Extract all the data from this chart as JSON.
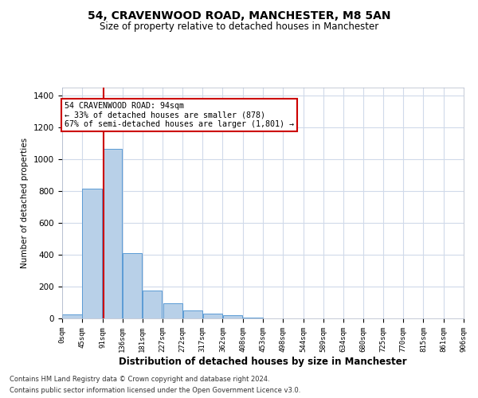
{
  "title": "54, CRAVENWOOD ROAD, MANCHESTER, M8 5AN",
  "subtitle": "Size of property relative to detached houses in Manchester",
  "xlabel": "Distribution of detached houses by size in Manchester",
  "ylabel": "Number of detached properties",
  "bar_values": [
    25,
    815,
    1065,
    410,
    175,
    95,
    50,
    30,
    20,
    5,
    2,
    1,
    1,
    0,
    0,
    0,
    0,
    0,
    0,
    0
  ],
  "bin_edges": [
    0,
    45,
    91,
    136,
    181,
    227,
    272,
    317,
    362,
    408,
    453,
    498,
    544,
    589,
    634,
    680,
    725,
    770,
    815,
    861,
    906
  ],
  "bin_labels": [
    "0sqm",
    "45sqm",
    "91sqm",
    "136sqm",
    "181sqm",
    "227sqm",
    "272sqm",
    "317sqm",
    "362sqm",
    "408sqm",
    "453sqm",
    "498sqm",
    "544sqm",
    "589sqm",
    "634sqm",
    "680sqm",
    "725sqm",
    "770sqm",
    "815sqm",
    "861sqm",
    "906sqm"
  ],
  "bar_color": "#b8d0e8",
  "bar_edge_color": "#5b9bd5",
  "vline_x": 94,
  "vline_color": "#cc0000",
  "ylim": [
    0,
    1450
  ],
  "annotation_text": "54 CRAVENWOOD ROAD: 94sqm\n← 33% of detached houses are smaller (878)\n67% of semi-detached houses are larger (1,801) →",
  "annotation_box_color": "#ffffff",
  "annotation_box_edge": "#cc0000",
  "footnote1": "Contains HM Land Registry data © Crown copyright and database right 2024.",
  "footnote2": "Contains public sector information licensed under the Open Government Licence v3.0.",
  "background_color": "#ffffff",
  "grid_color": "#d0daea"
}
